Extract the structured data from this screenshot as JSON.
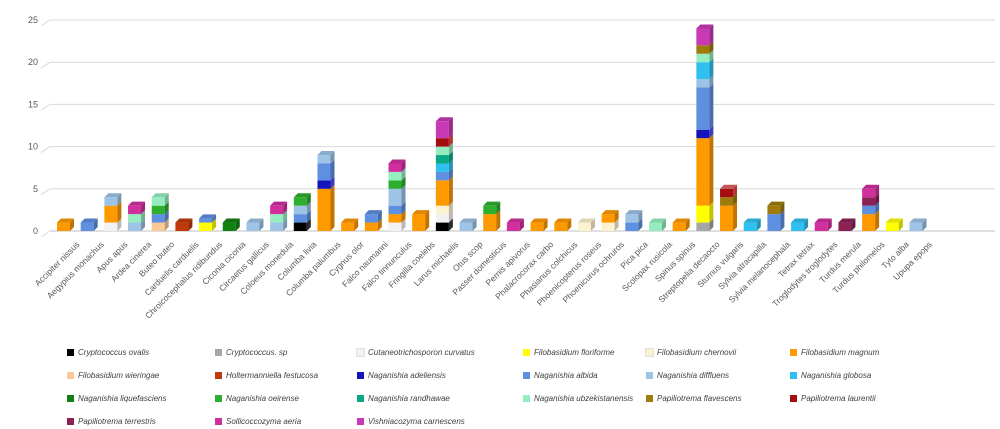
{
  "chart_data": {
    "type": "bar",
    "variant": "3d-stacked",
    "title": "",
    "xlabel": "",
    "ylabel": "",
    "ylim": [
      0,
      25
    ],
    "yticks": [
      0,
      5,
      10,
      15,
      20,
      25
    ],
    "grid": true,
    "legend_position": "bottom",
    "series": [
      {
        "id": "ovalis",
        "name": "Cryptococcus ovalis",
        "color": "#000000"
      },
      {
        "id": "crypto_sp",
        "name": "Cryptococcus. sp",
        "color": "#A6A6A6"
      },
      {
        "id": "curvatus",
        "name": "Cutaneotrichosporon curvatus",
        "color": "#F2F2F2"
      },
      {
        "id": "floriforme",
        "name": "Filobasidium floriforme",
        "color": "#FFFF00"
      },
      {
        "id": "chernovii",
        "name": "Filobasidium chernovii",
        "color": "#FBF2CF"
      },
      {
        "id": "magnum",
        "name": "Filobasidium magnum",
        "color": "#FF9900"
      },
      {
        "id": "wieringae",
        "name": "Filobasidium wieringae",
        "color": "#FBCA94"
      },
      {
        "id": "festucosa",
        "name": "Holtermanniella festucosa",
        "color": "#C0390B"
      },
      {
        "id": "adeliensis",
        "name": "Naganishia adeliensis",
        "color": "#1414B8"
      },
      {
        "id": "albida",
        "name": "Naganishia albida",
        "color": "#5E8FE0"
      },
      {
        "id": "diffluens",
        "name": "Naganishia diffluens",
        "color": "#9DC3E6"
      },
      {
        "id": "globosa",
        "name": "Naganishia globosa",
        "color": "#30C0F0"
      },
      {
        "id": "liquefasciens",
        "name": "Naganishia liquefasciens",
        "color": "#128012"
      },
      {
        "id": "oeirense",
        "name": "Naganishia oeirense",
        "color": "#2EAE2E"
      },
      {
        "id": "randhawae",
        "name": "Naganishia randhawae",
        "color": "#0CA884"
      },
      {
        "id": "ubzekistanensis",
        "name": "Naganishia ubzekistanensis",
        "color": "#95EDBF"
      },
      {
        "id": "flavescens",
        "name": "Papiliotrema flavescens",
        "color": "#9E7B0B"
      },
      {
        "id": "laurentii",
        "name": "Papiliotrema laurentii",
        "color": "#A50E0E"
      },
      {
        "id": "terrestris",
        "name": "Papiliotrema terrestris",
        "color": "#8C2156"
      },
      {
        "id": "aeria",
        "name": "Sollicoccozyma aeria",
        "color": "#D02F9E"
      },
      {
        "id": "carnescens",
        "name": "Vishniacozyma carnescens",
        "color": "#C739B5"
      }
    ],
    "bars": [
      {
        "category": "Accipiter nissus",
        "segments": [
          [
            "magnum",
            1
          ]
        ]
      },
      {
        "category": "Aegypius monachus",
        "segments": [
          [
            "albida",
            1
          ]
        ]
      },
      {
        "category": "Apus apus",
        "segments": [
          [
            "curvatus",
            1
          ],
          [
            "magnum",
            2
          ],
          [
            "diffluens",
            1
          ]
        ]
      },
      {
        "category": "Ardea cinerea",
        "segments": [
          [
            "diffluens",
            1
          ],
          [
            "ubzekistanensis",
            1
          ],
          [
            "aeria",
            1
          ]
        ]
      },
      {
        "category": "Buteo buteo",
        "segments": [
          [
            "wieringae",
            1
          ],
          [
            "albida",
            1
          ],
          [
            "oeirense",
            1
          ],
          [
            "ubzekistanensis",
            1
          ]
        ]
      },
      {
        "category": "Carduelis carduelis",
        "segments": [
          [
            "festucosa",
            1
          ]
        ]
      },
      {
        "category": "Chroicocephalus ridibundus",
        "segments": [
          [
            "floriforme",
            1
          ],
          [
            "albida",
            0.5
          ]
        ]
      },
      {
        "category": "Ciconia ciconia",
        "segments": [
          [
            "liquefasciens",
            1
          ]
        ]
      },
      {
        "category": "Circaetus gallicus",
        "segments": [
          [
            "diffluens",
            1
          ]
        ]
      },
      {
        "category": "Coloeus monedula",
        "segments": [
          [
            "diffluens",
            1
          ],
          [
            "ubzekistanensis",
            1
          ],
          [
            "aeria",
            1
          ]
        ]
      },
      {
        "category": "Columba livia",
        "segments": [
          [
            "ovalis",
            1
          ],
          [
            "albida",
            1
          ],
          [
            "diffluens",
            1
          ],
          [
            "oeirense",
            1
          ]
        ]
      },
      {
        "category": "Columba palumbus",
        "segments": [
          [
            "magnum",
            5
          ],
          [
            "adeliensis",
            1
          ],
          [
            "albida",
            2
          ],
          [
            "diffluens",
            1
          ]
        ]
      },
      {
        "category": "Cygnus olor",
        "segments": [
          [
            "magnum",
            1
          ]
        ]
      },
      {
        "category": "Falco naumanni",
        "segments": [
          [
            "magnum",
            1
          ],
          [
            "albida",
            1
          ]
        ]
      },
      {
        "category": "Falco tinnunculus",
        "segments": [
          [
            "curvatus",
            1
          ],
          [
            "magnum",
            1
          ],
          [
            "albida",
            1
          ],
          [
            "diffluens",
            2
          ],
          [
            "oeirense",
            1
          ],
          [
            "ubzekistanensis",
            1
          ],
          [
            "aeria",
            1
          ]
        ]
      },
      {
        "category": "Fringilla coelebs",
        "segments": [
          [
            "magnum",
            2
          ]
        ]
      },
      {
        "category": "Larus michaelis",
        "segments": [
          [
            "ovalis",
            1
          ],
          [
            "curvatus",
            1
          ],
          [
            "chernovii",
            1
          ],
          [
            "magnum",
            3
          ],
          [
            "albida",
            1
          ],
          [
            "globosa",
            1
          ],
          [
            "randhawae",
            1
          ],
          [
            "ubzekistanensis",
            1
          ],
          [
            "laurentii",
            1
          ],
          [
            "carnescens",
            2
          ]
        ]
      },
      {
        "category": "Otus scop",
        "segments": [
          [
            "diffluens",
            1
          ]
        ]
      },
      {
        "category": "Passer domesticus",
        "segments": [
          [
            "magnum",
            2
          ],
          [
            "oeirense",
            1
          ]
        ]
      },
      {
        "category": "Pernis apivorus",
        "segments": [
          [
            "aeria",
            1
          ]
        ]
      },
      {
        "category": "Phalacrocorax carbo",
        "segments": [
          [
            "magnum",
            1
          ]
        ]
      },
      {
        "category": "Phasianus colchicus",
        "segments": [
          [
            "magnum",
            1
          ]
        ]
      },
      {
        "category": "Phoenicopterus roseus",
        "segments": [
          [
            "chernovii",
            1
          ]
        ]
      },
      {
        "category": "Phoenicurus ochruros",
        "segments": [
          [
            "chernovii",
            1
          ],
          [
            "magnum",
            1
          ]
        ]
      },
      {
        "category": "Pica pica",
        "segments": [
          [
            "albida",
            1
          ],
          [
            "diffluens",
            1
          ]
        ]
      },
      {
        "category": "Scolopax rusicola",
        "segments": [
          [
            "ubzekistanensis",
            1
          ]
        ]
      },
      {
        "category": "Spinus spinus",
        "segments": [
          [
            "magnum",
            1
          ]
        ]
      },
      {
        "category": "Streptopelia decaocto",
        "segments": [
          [
            "crypto_sp",
            1
          ],
          [
            "floriforme",
            2
          ],
          [
            "magnum",
            8
          ],
          [
            "adeliensis",
            1
          ],
          [
            "albida",
            5
          ],
          [
            "diffluens",
            1
          ],
          [
            "globosa",
            2
          ],
          [
            "ubzekistanensis",
            1
          ],
          [
            "flavescens",
            1
          ],
          [
            "carnescens",
            2
          ]
        ]
      },
      {
        "category": "Sturnus vulgaris",
        "segments": [
          [
            "magnum",
            3
          ],
          [
            "flavescens",
            1
          ],
          [
            "laurentii",
            1
          ]
        ]
      },
      {
        "category": "Sylvia atracapilla",
        "segments": [
          [
            "globosa",
            1
          ]
        ]
      },
      {
        "category": "Sylvia melanocephala",
        "segments": [
          [
            "albida",
            2
          ],
          [
            "flavescens",
            1
          ]
        ]
      },
      {
        "category": "Tetrax tetrax",
        "segments": [
          [
            "globosa",
            1
          ]
        ]
      },
      {
        "category": "Troglodytes troglodytes",
        "segments": [
          [
            "aeria",
            1
          ]
        ]
      },
      {
        "category": "Turdus merula",
        "segments": [
          [
            "terrestris",
            1
          ]
        ]
      },
      {
        "category": "Turdus philomelos",
        "segments": [
          [
            "magnum",
            2
          ],
          [
            "albida",
            1
          ],
          [
            "terrestris",
            1
          ],
          [
            "aeria",
            1
          ]
        ]
      },
      {
        "category": "Tyto alba",
        "segments": [
          [
            "floriforme",
            1
          ]
        ]
      },
      {
        "category": "Upupa epops",
        "segments": [
          [
            "diffluens",
            1
          ]
        ]
      }
    ],
    "colors_meta": {
      "gridline": "#D9D9D9",
      "axis_line": "#BFBFBF",
      "tick_text": "#595959",
      "category_text": "#595959",
      "legend_text": "#404040"
    }
  }
}
